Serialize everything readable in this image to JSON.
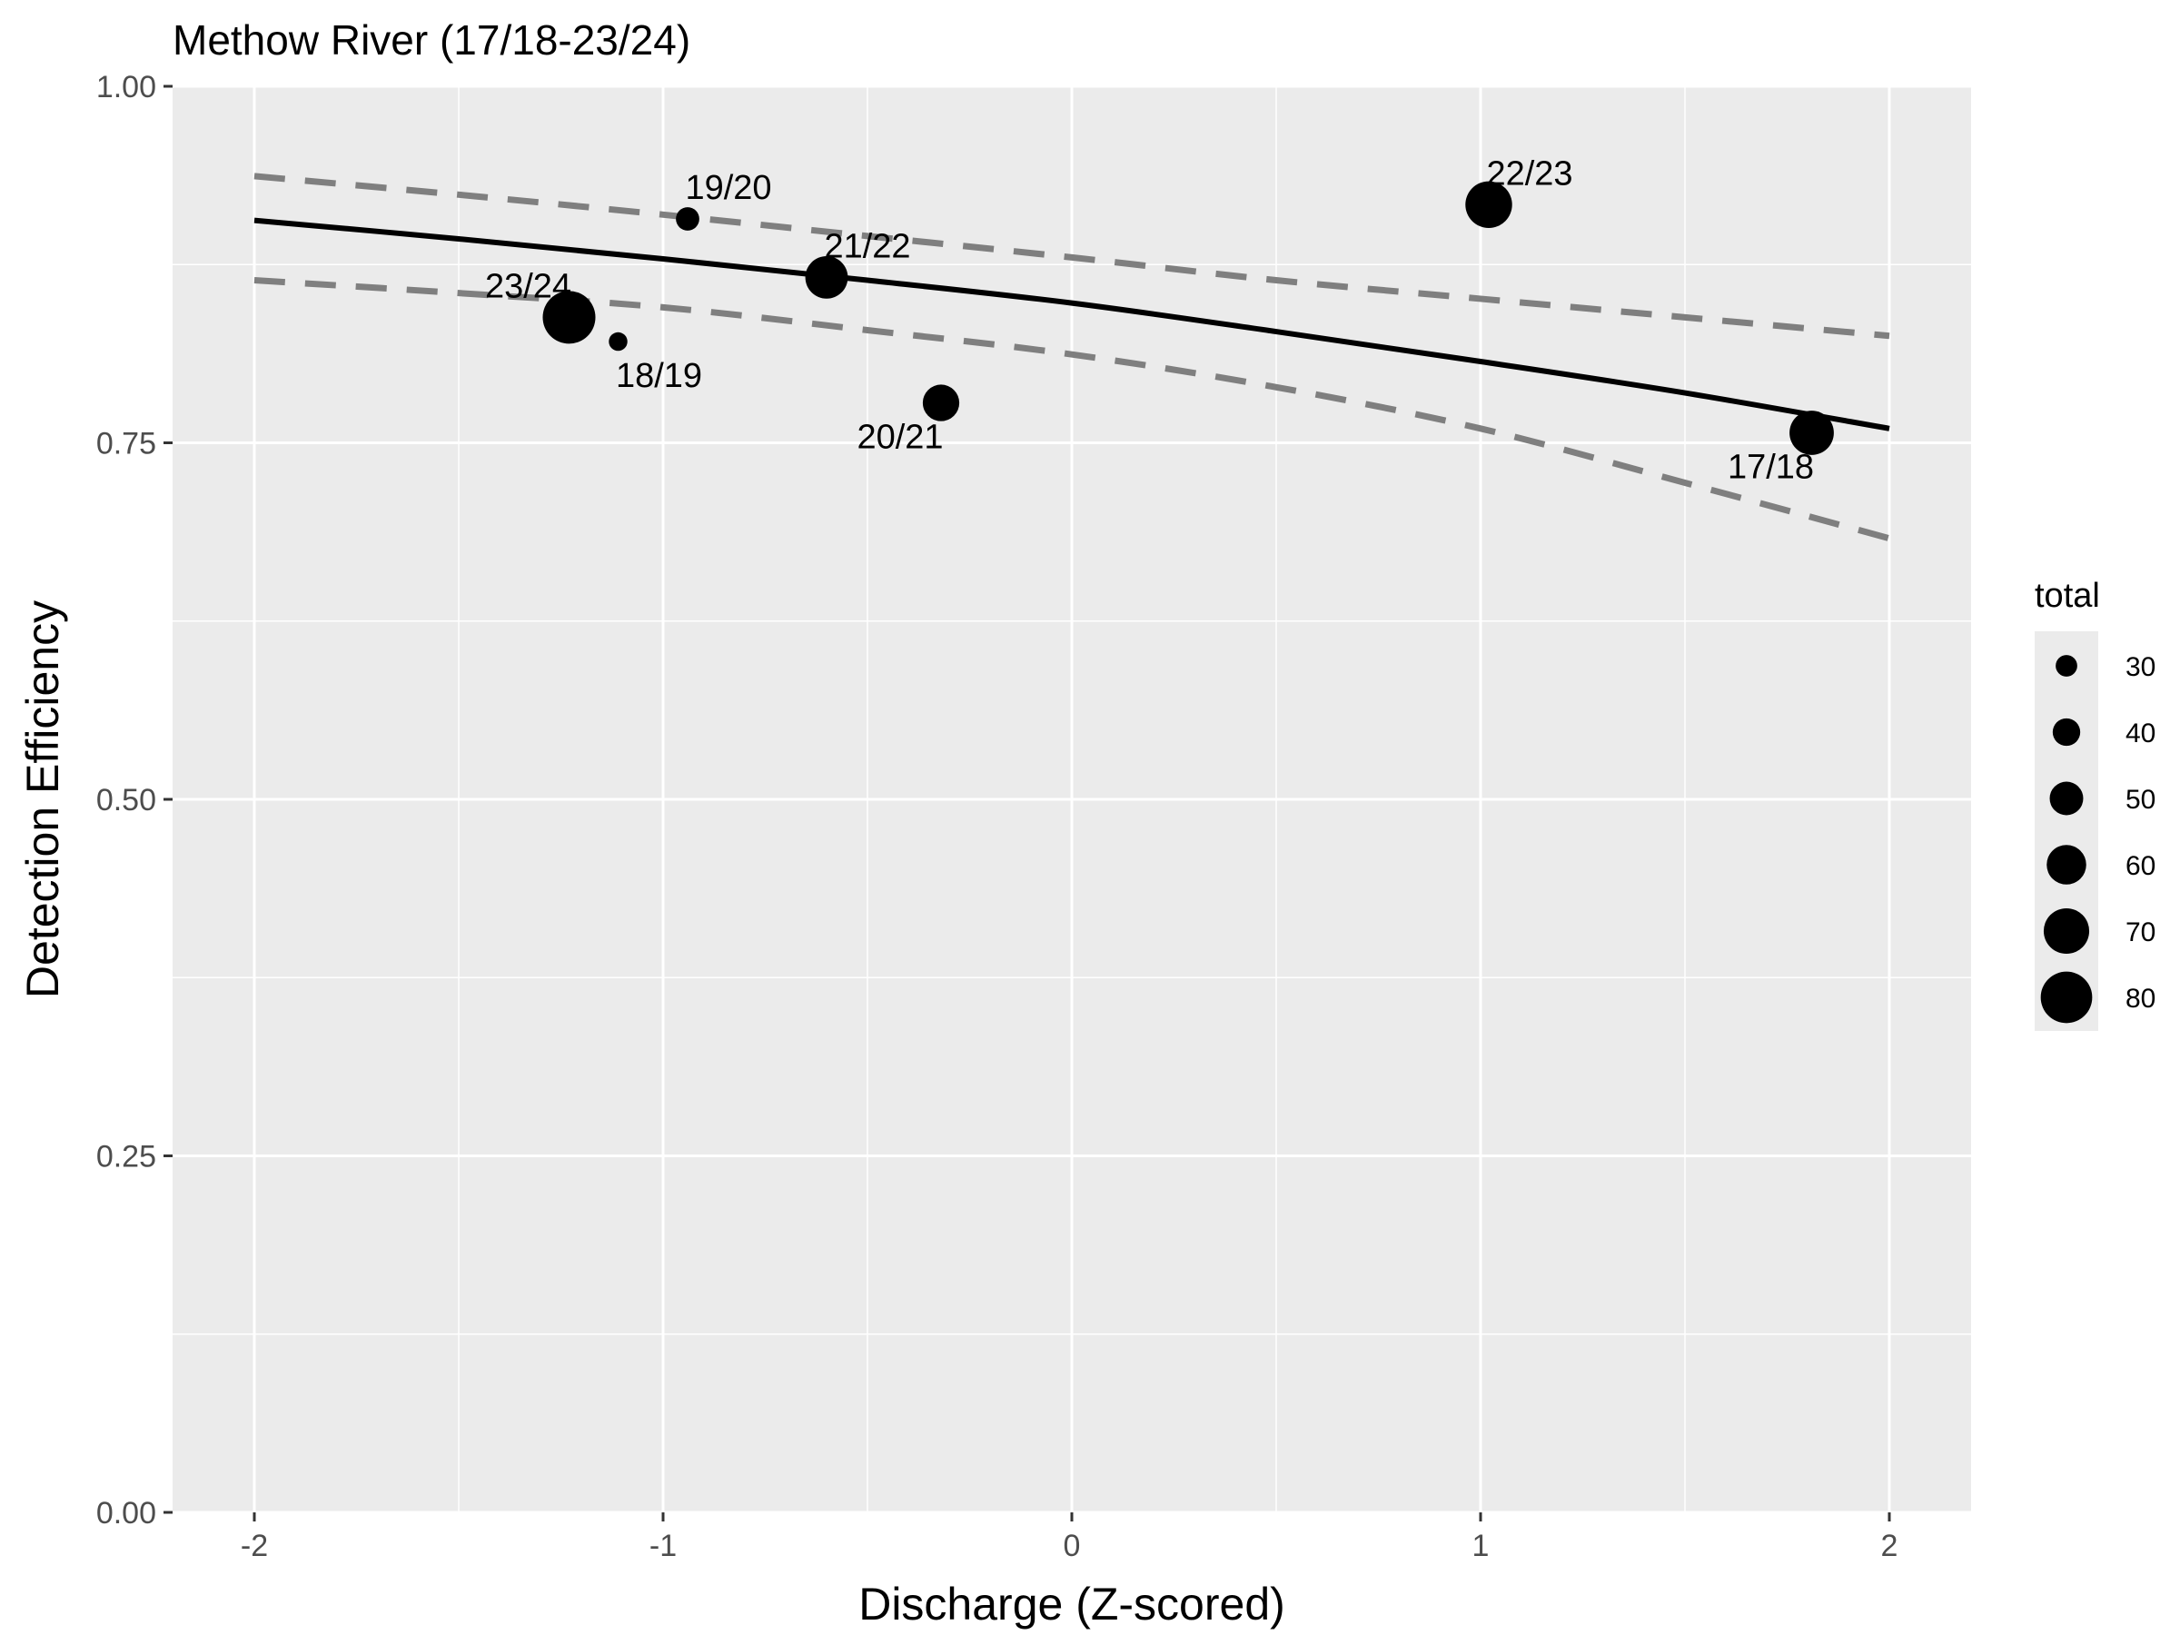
{
  "chart_data": {
    "type": "scatter",
    "title": "Methow River (17/18-23/24)",
    "xlabel": "Discharge (Z-scored)",
    "ylabel": "Detection Efficiency",
    "xlim": [
      -2.2,
      2.2
    ],
    "ylim": [
      0,
      1
    ],
    "x_ticks": [
      -2,
      -1,
      0,
      1,
      2
    ],
    "x_tick_labels": [
      "-2",
      "-1",
      "0",
      "1",
      "2"
    ],
    "y_ticks": [
      0,
      0.25,
      0.5,
      0.75,
      1.0
    ],
    "y_tick_labels": [
      "0.00",
      "0.25",
      "0.50",
      "0.75",
      "1.00"
    ],
    "grid": true,
    "background": "#ebebeb",
    "points": [
      {
        "label": "17/18",
        "x": 1.81,
        "y": 0.757,
        "total": 68
      },
      {
        "label": "18/19",
        "x": -1.11,
        "y": 0.821,
        "total": 25
      },
      {
        "label": "19/20",
        "x": -0.94,
        "y": 0.907,
        "total": 33
      },
      {
        "label": "20/21",
        "x": -0.32,
        "y": 0.778,
        "total": 55
      },
      {
        "label": "21/22",
        "x": -0.6,
        "y": 0.866,
        "total": 65
      },
      {
        "label": "22/23",
        "x": 1.02,
        "y": 0.917,
        "total": 72
      },
      {
        "label": "23/24",
        "x": -1.23,
        "y": 0.838,
        "total": 82
      }
    ],
    "fit_line": {
      "x": [
        -2,
        -1.5,
        -1,
        -0.5,
        0,
        0.5,
        1,
        1.5,
        2
      ],
      "y": [
        0.906,
        0.893,
        0.879,
        0.864,
        0.848,
        0.828,
        0.807,
        0.785,
        0.76
      ]
    },
    "upper_band": {
      "x": [
        -2,
        -1.5,
        -1,
        -0.5,
        0,
        0.5,
        1,
        1.5,
        2
      ],
      "y": [
        0.937,
        0.924,
        0.91,
        0.895,
        0.88,
        0.864,
        0.851,
        0.838,
        0.825
      ]
    },
    "lower_band": {
      "x": [
        -2,
        -1.5,
        -1,
        -0.5,
        0,
        0.5,
        1,
        1.5,
        2
      ],
      "y": [
        0.864,
        0.855,
        0.845,
        0.829,
        0.812,
        0.789,
        0.76,
        0.722,
        0.683
      ]
    },
    "legend": {
      "title": "total",
      "position": "right",
      "entries": [
        {
          "label": "30",
          "value": 30
        },
        {
          "label": "40",
          "value": 40
        },
        {
          "label": "50",
          "value": 50
        },
        {
          "label": "60",
          "value": 60
        },
        {
          "label": "70",
          "value": 70
        },
        {
          "label": "80",
          "value": 80
        }
      ]
    },
    "colors": {
      "points": "#000000",
      "fit_line": "#000000",
      "band": "#7f7f7f",
      "grid": "#ffffff"
    }
  }
}
